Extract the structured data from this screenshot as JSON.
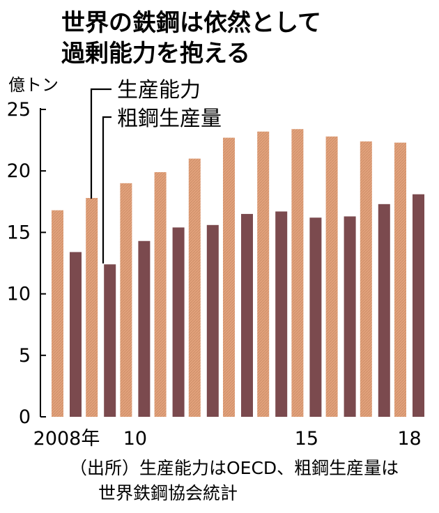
{
  "chart_data": {
    "type": "bar",
    "title": [
      "世界の鉄鋼は依然として",
      "過剰能力を抱える"
    ],
    "ylabel": "億トン",
    "ylim": [
      0,
      25
    ],
    "yticks": [
      0,
      5,
      10,
      15,
      20,
      25
    ],
    "categories": [
      "2008",
      "2009",
      "2010",
      "2011",
      "2012",
      "2013",
      "2014",
      "2015",
      "2016",
      "2017",
      "2018"
    ],
    "xtick_labels": [
      "2008年",
      "",
      "10",
      "",
      "",
      "",
      "",
      "15",
      "",
      "",
      "18"
    ],
    "series": [
      {
        "name": "生産能力",
        "color": "#e2a27c",
        "values": [
          16.8,
          17.8,
          19.0,
          19.9,
          21.0,
          22.7,
          23.2,
          23.4,
          22.8,
          22.4,
          22.3
        ]
      },
      {
        "name": "粗鋼生産量",
        "color": "#7b4a4e",
        "values": [
          13.4,
          12.4,
          14.3,
          15.4,
          15.6,
          16.5,
          16.7,
          16.2,
          16.3,
          17.3,
          18.1
        ]
      }
    ],
    "grid": false,
    "legend": "top-left (callout labels)"
  },
  "source": [
    "（出所）生産能力はOECD、粗鋼生産量は",
    "世界鉄鋼協会統計"
  ]
}
